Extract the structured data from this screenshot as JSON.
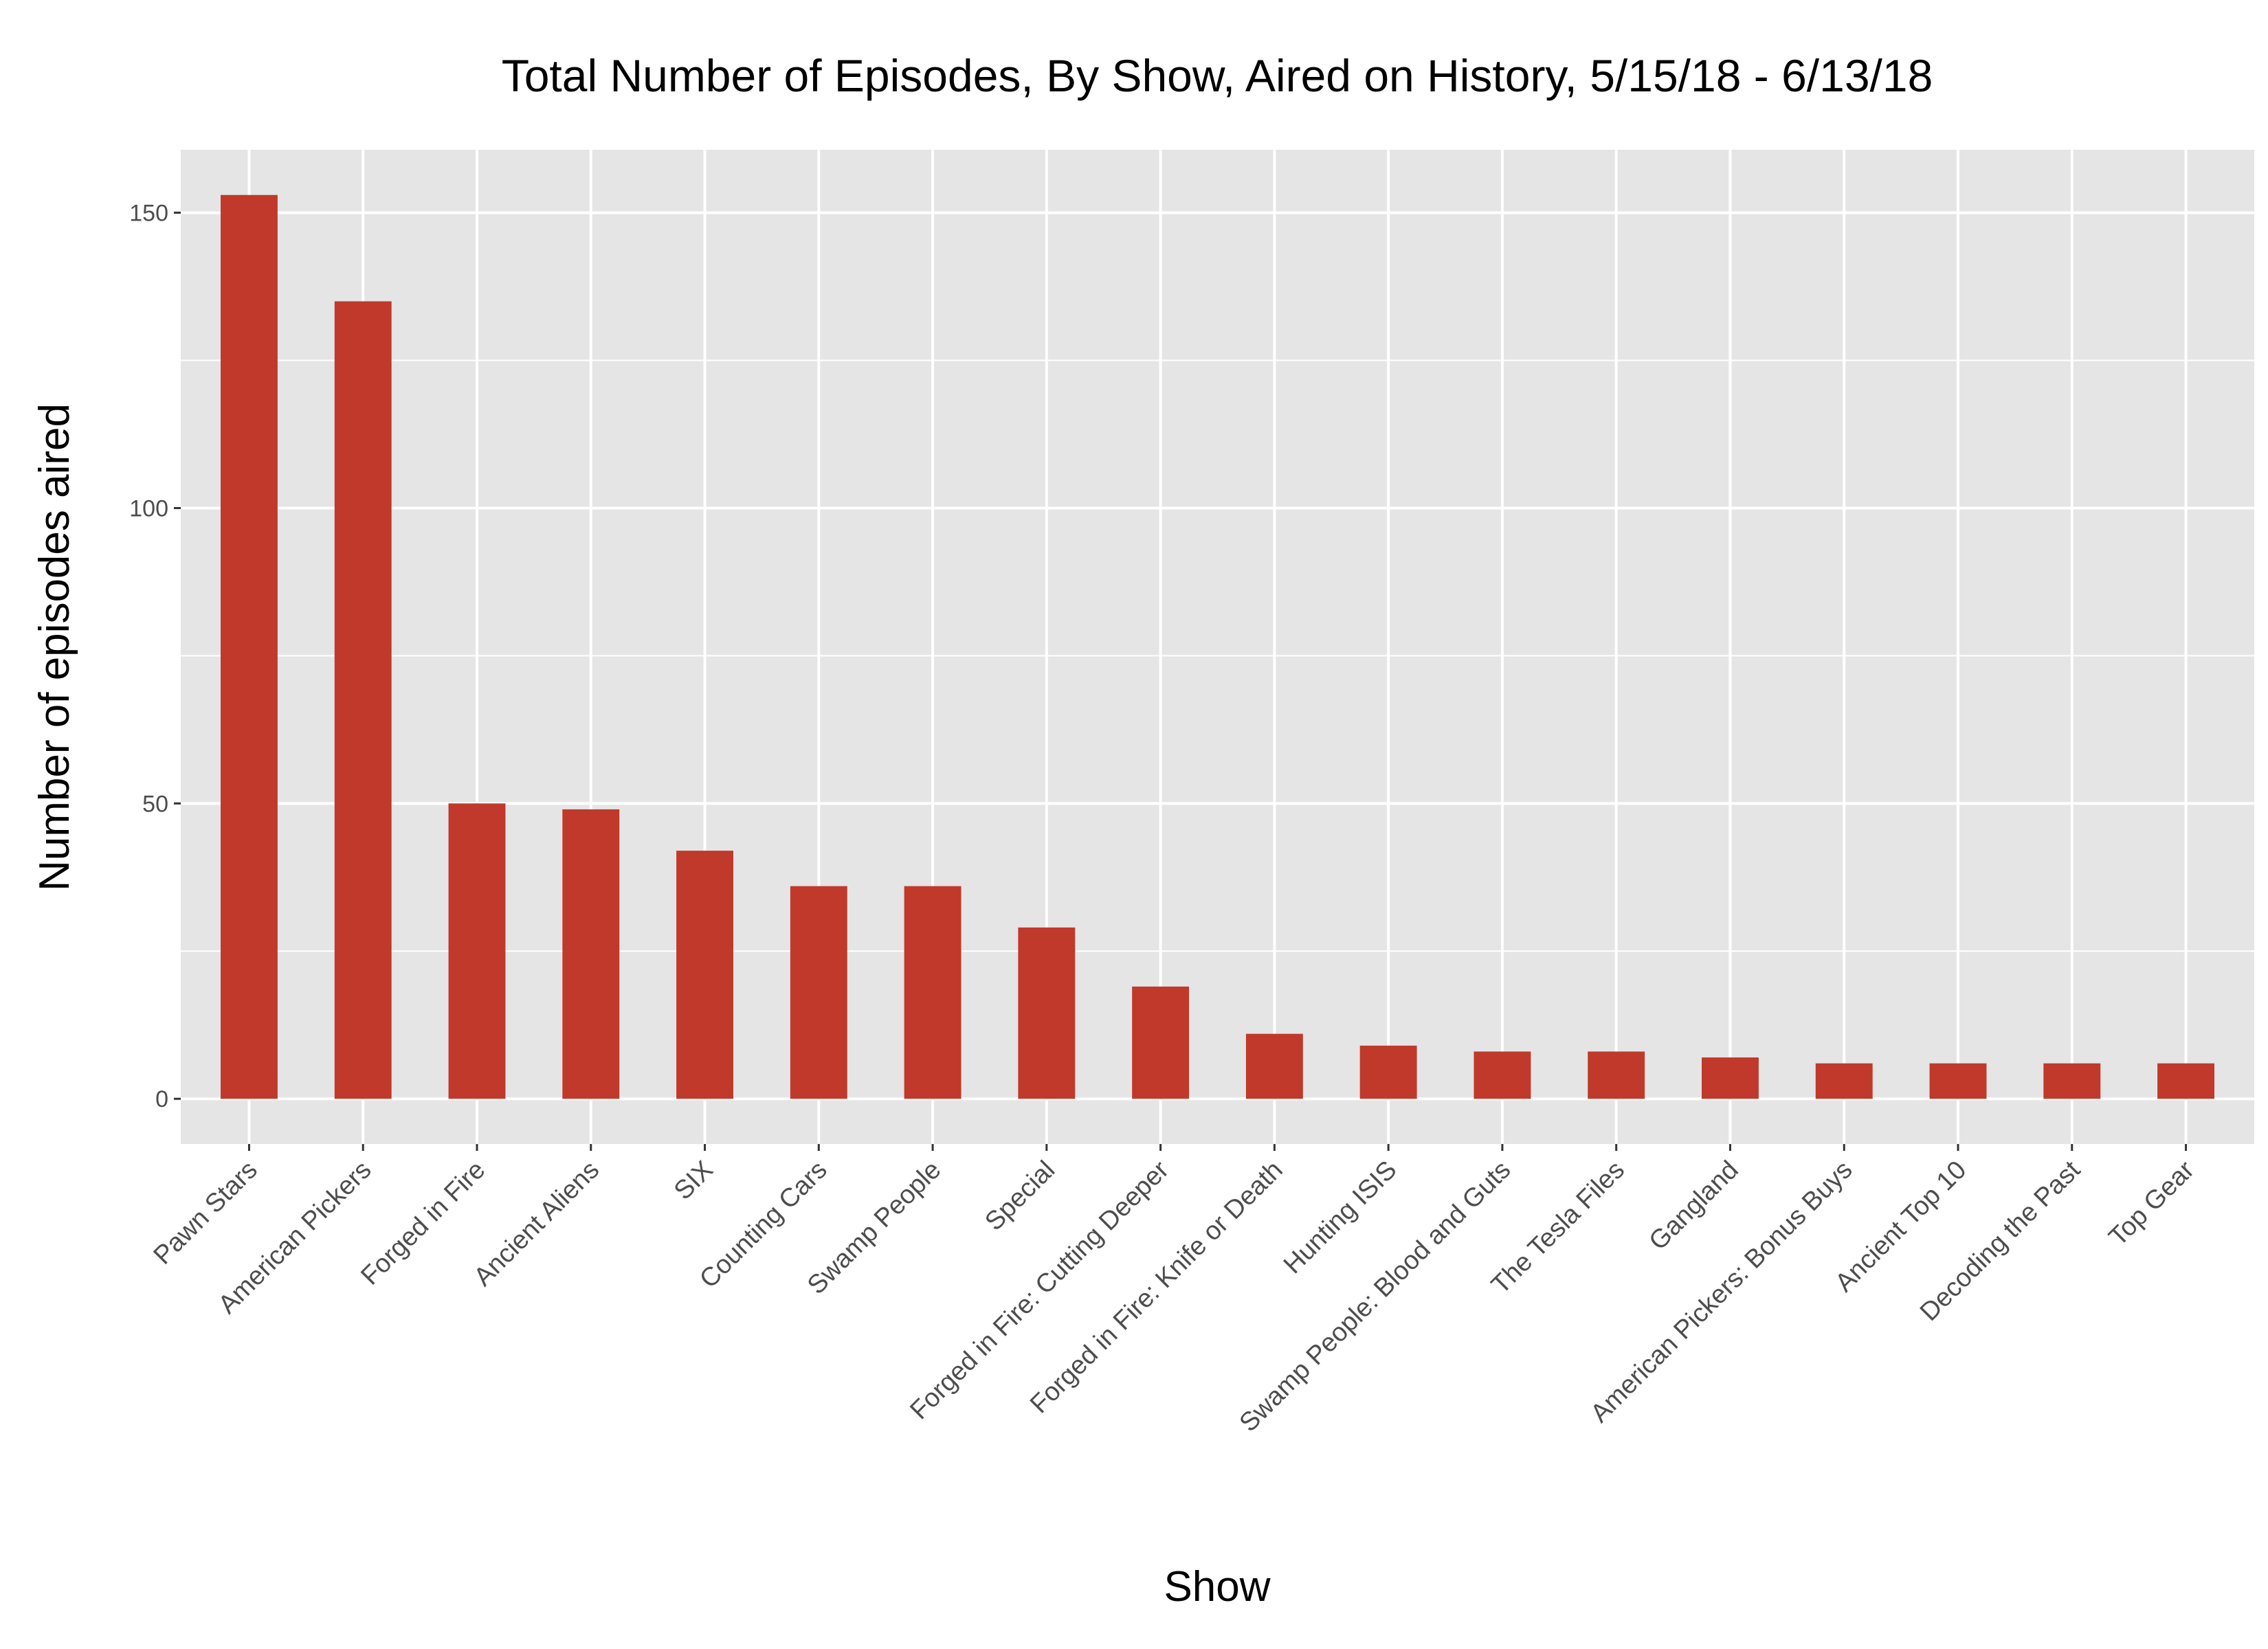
{
  "chart_data": {
    "type": "bar",
    "title": "Total Number of Episodes, By Show, Aired on History, 5/15/18 - 6/13/18",
    "xlabel": "Show",
    "ylabel": "Number of episodes aired",
    "categories": [
      "Pawn Stars",
      "American Pickers",
      "Forged in Fire",
      "Ancient Aliens",
      "SIX",
      "Counting Cars",
      "Swamp People",
      "Special",
      "Forged in Fire: Cutting Deeper",
      "Forged in Fire: Knife or Death",
      "Hunting ISIS",
      "Swamp People: Blood and Guts",
      "The Tesla Files",
      "Gangland",
      "American Pickers: Bonus Buys",
      "Ancient Top 10",
      "Decoding the Past",
      "Top Gear"
    ],
    "values": [
      153,
      135,
      50,
      49,
      42,
      36,
      36,
      29,
      19,
      11,
      9,
      8,
      8,
      7,
      6,
      6,
      6,
      6
    ],
    "yticks": [
      0,
      50,
      100,
      150
    ],
    "ylim": [
      -7.65,
      160.65
    ],
    "grid": true,
    "bar_color": "#C0392B",
    "panel_color": "#E5E5E5"
  }
}
